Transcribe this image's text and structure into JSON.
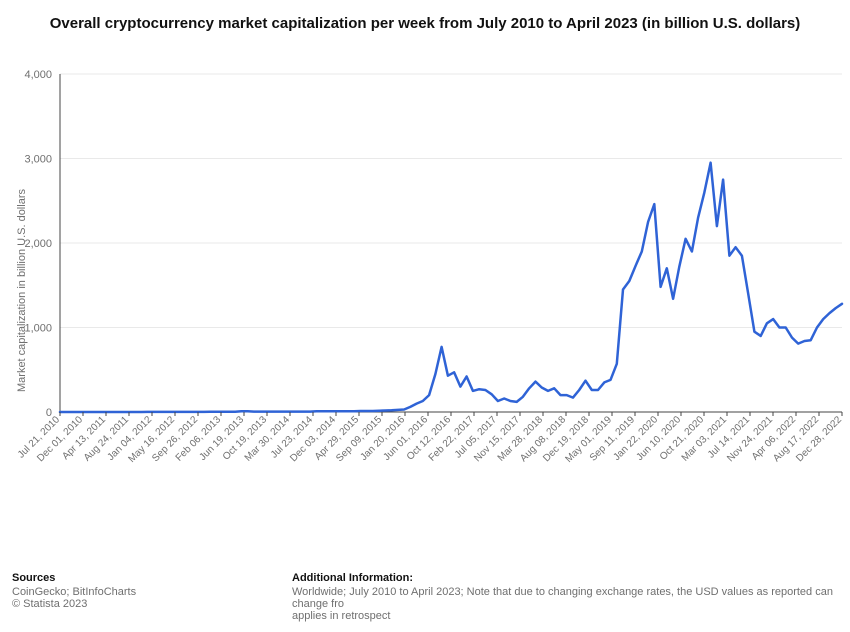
{
  "title": "Overall cryptocurrency market capitalization per week from July 2010 to April 2023 (in billion U.S. dollars)",
  "title_fontsize": 15,
  "chart": {
    "type": "line",
    "background_color": "#ffffff",
    "grid_color": "#e9e9e9",
    "axis_color": "#444444",
    "line_color": "#2f63d6",
    "line_width": 2.5,
    "ylabel": "Market capitalization in billion U.S. dollars",
    "ylabel_fontsize": 11,
    "ylim": [
      0,
      4000
    ],
    "yticks": [
      0,
      1000,
      2000,
      3000,
      4000
    ],
    "ytick_labels": [
      "0",
      "1,000",
      "2,000",
      "3,000",
      "4,000"
    ],
    "x_tick_labels": [
      "Jul 21, 2010",
      "Dec 01, 2010",
      "Apr 13, 2011",
      "Aug 24, 2011",
      "Jan 04, 2012",
      "May 16, 2012",
      "Sep 26, 2012",
      "Feb 06, 2013",
      "Jun 19, 2013",
      "Oct 19, 2013",
      "Mar 30, 2014",
      "Jul 23, 2014",
      "Dec 03, 2014",
      "Apr 29, 2015",
      "Sep 09, 2015",
      "Jan 20, 2016",
      "Jun 01, 2016",
      "Oct 12, 2016",
      "Feb 22, 2017",
      "Jul 05, 2017",
      "Nov 15, 2017",
      "Mar 28, 2018",
      "Aug 08, 2018",
      "Dec 19, 2018",
      "May 01, 2019",
      "Sep 11, 2019",
      "Jan 22, 2020",
      "Jun 10, 2020",
      "Oct 21, 2020",
      "Mar 03, 2021",
      "Jul 14, 2021",
      "Nov 24, 2021",
      "Apr 06, 2022",
      "Aug 17, 2022",
      "Dec 28, 2022"
    ],
    "series": [
      0,
      0,
      0,
      0,
      0,
      0,
      0,
      0,
      0,
      0,
      0,
      0,
      0,
      0,
      1,
      1,
      1,
      1,
      1,
      1,
      1,
      1,
      1,
      1,
      2,
      2,
      2,
      2,
      2,
      8,
      8,
      5,
      5,
      5,
      5,
      5,
      5,
      5,
      5,
      5,
      5,
      8,
      8,
      8,
      8,
      8,
      10,
      10,
      12,
      12,
      12,
      15,
      18,
      20,
      25,
      30,
      60,
      100,
      130,
      200,
      450,
      770,
      430,
      470,
      300,
      420,
      250,
      270,
      260,
      210,
      130,
      160,
      130,
      120,
      180,
      280,
      360,
      290,
      250,
      280,
      200,
      200,
      170,
      260,
      370,
      260,
      260,
      350,
      380,
      570,
      1450,
      1550,
      1730,
      1900,
      2250,
      2460,
      1480,
      1700,
      1340,
      1720,
      2050,
      1900,
      2300,
      2600,
      2950,
      2200,
      2750,
      1850,
      1950,
      1850,
      1400,
      950,
      900,
      1050,
      1100,
      1000,
      1000,
      880,
      810,
      840,
      850,
      1000,
      1100,
      1170,
      1230,
      1280
    ]
  },
  "footer": {
    "sources_heading": "Sources",
    "sources_line1": "CoinGecko; BitInfoCharts",
    "sources_line2": "© Statista 2023",
    "info_heading": "Additional Information:",
    "info_line1": "Worldwide; July 2010 to April 2023; Note that due to changing exchange rates, the USD values as reported can change fro",
    "info_line2": "applies in retrospect"
  }
}
